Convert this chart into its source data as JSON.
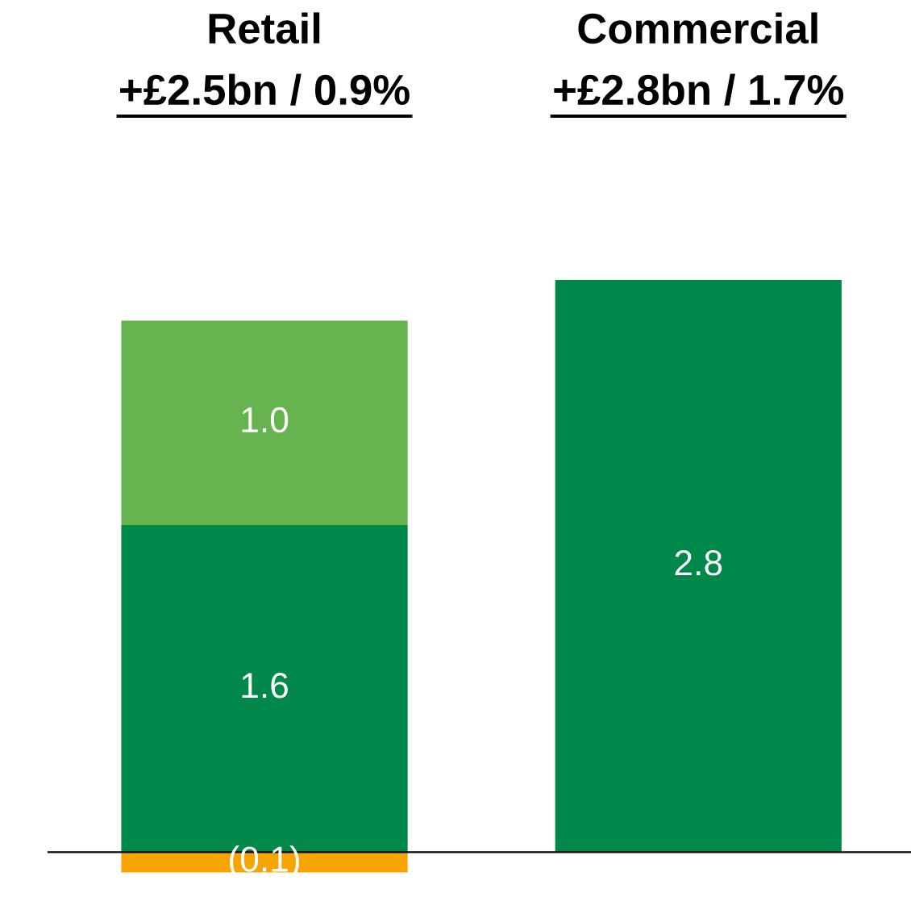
{
  "chart_data": {
    "type": "bar",
    "stacked": true,
    "categories": [
      "Retail",
      "Commercial"
    ],
    "series": [
      {
        "color": "#f5a400",
        "values": [
          -0.1,
          null
        ],
        "value_labels": [
          "(0.1)",
          null
        ]
      },
      {
        "color": "#00874a",
        "values": [
          1.6,
          2.8
        ],
        "value_labels": [
          "1.6",
          "2.8"
        ]
      },
      {
        "color": "#66b34f",
        "values": [
          1.0,
          null
        ],
        "value_labels": [
          "1.0",
          null
        ]
      }
    ],
    "annotations": [
      "+£2.5bn / 0.9%",
      "+£2.8bn / 1.7%"
    ]
  }
}
